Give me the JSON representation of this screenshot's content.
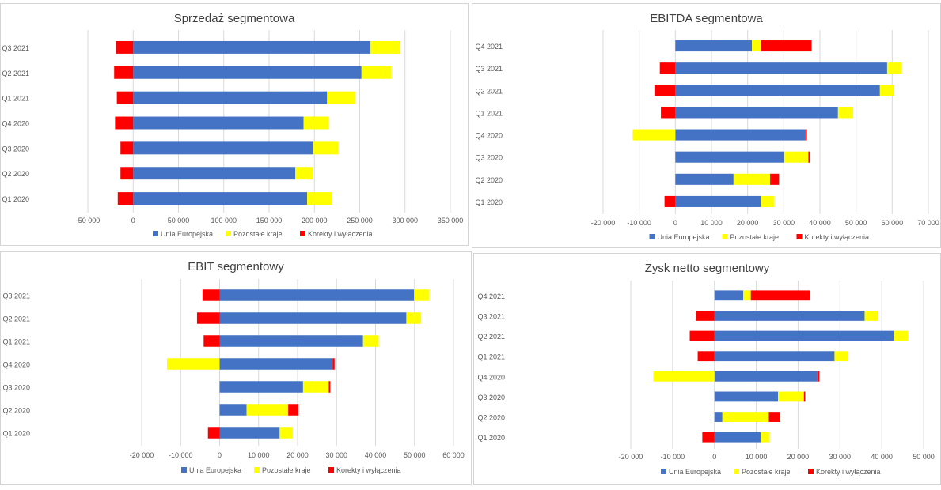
{
  "colors": {
    "eu": "#4472C4",
    "other": "#FFFF00",
    "corr": "#FF0000",
    "grid": "#d9d9d9",
    "text": "#595959",
    "title": "#404040"
  },
  "chart_data": [
    {
      "type": "bar",
      "orientation": "horizontal",
      "stacked": true,
      "title": "Sprzedaż segmentowa",
      "categories": [
        "Q1 2020",
        "Q2 2020",
        "Q3 2020",
        "Q4 2020",
        "Q1 2021",
        "Q2 2021",
        "Q3 2021"
      ],
      "series": [
        {
          "name": "Unia Europejska",
          "color": "#4472C4",
          "values": [
            192000,
            179000,
            199000,
            188000,
            214000,
            252000,
            262000
          ]
        },
        {
          "name": "Pozostałe kraje",
          "color": "#FFFF00",
          "values": [
            27000,
            19000,
            27000,
            28000,
            31000,
            33000,
            33000
          ]
        },
        {
          "name": "Korekty i wyłączenia",
          "color": "#FF0000",
          "values": [
            -17000,
            -14000,
            -14000,
            -20000,
            -18000,
            -21000,
            -19000
          ]
        }
      ],
      "xlim": [
        -50000,
        350000
      ],
      "xticks": [
        -50000,
        0,
        50000,
        100000,
        150000,
        200000,
        250000,
        300000,
        350000
      ],
      "xtick_labels": [
        "-50 000",
        "0",
        "50 000",
        "100 000",
        "150 000",
        "200 000",
        "250 000",
        "300 000",
        "350 000"
      ],
      "grid": true,
      "legend_position": "bottom"
    },
    {
      "type": "bar",
      "orientation": "horizontal",
      "stacked": true,
      "title": "EBITDA segmentowa",
      "categories": [
        "Q1 2020",
        "Q2 2020",
        "Q3 2020",
        "Q4 2020",
        "Q1 2021",
        "Q2 2021",
        "Q3 2021",
        "Q4 2021"
      ],
      "series": [
        {
          "name": "Unia Europejska",
          "color": "#4472C4",
          "values": [
            23700,
            16100,
            30100,
            36000,
            45000,
            56600,
            58600,
            21200
          ]
        },
        {
          "name": "Pozostałe kraje",
          "color": "#FFFF00",
          "values": [
            3700,
            10100,
            6700,
            -11800,
            4200,
            3900,
            4000,
            2600
          ]
        },
        {
          "name": "Korekty i wyłączenia",
          "color": "#FF0000",
          "values": [
            -3000,
            2500,
            400,
            400,
            -4000,
            -5800,
            -4300,
            13900
          ]
        }
      ],
      "xlim": [
        -20000,
        70000
      ],
      "xticks": [
        -20000,
        -10000,
        0,
        10000,
        20000,
        30000,
        40000,
        50000,
        60000,
        70000
      ],
      "xtick_labels": [
        "-20 000",
        "-10 000",
        "0",
        "10 000",
        "20 000",
        "30 000",
        "40 000",
        "50 000",
        "60 000",
        "70 000"
      ],
      "grid": true,
      "legend_position": "bottom"
    },
    {
      "type": "bar",
      "orientation": "horizontal",
      "stacked": true,
      "title": "EBIT segmentowy",
      "categories": [
        "Q1 2020",
        "Q2 2020",
        "Q3 2020",
        "Q4 2020",
        "Q1 2021",
        "Q2 2021",
        "Q3 2021"
      ],
      "series": [
        {
          "name": "Unia Europejska",
          "color": "#4472C4",
          "values": [
            15400,
            6900,
            21400,
            29000,
            36800,
            47900,
            49900
          ]
        },
        {
          "name": "Pozostałe kraje",
          "color": "#FFFF00",
          "values": [
            3400,
            10700,
            6600,
            -13500,
            4000,
            3800,
            3900
          ]
        },
        {
          "name": "Korekty i wyłączenia",
          "color": "#FF0000",
          "values": [
            -3000,
            2600,
            400,
            500,
            -4100,
            -5800,
            -4400
          ]
        }
      ],
      "xlim": [
        -20000,
        60000
      ],
      "xticks": [
        -20000,
        -10000,
        0,
        10000,
        20000,
        30000,
        40000,
        50000,
        60000
      ],
      "xtick_labels": [
        "-20 000",
        "-10 000",
        "0",
        "10 000",
        "20 000",
        "30 000",
        "40 000",
        "50 000",
        "60 000"
      ],
      "grid": true,
      "legend_position": "bottom"
    },
    {
      "type": "bar",
      "orientation": "horizontal",
      "stacked": true,
      "title": "Zysk netto segmentowy",
      "categories": [
        "Q1 2020",
        "Q2 2020",
        "Q3 2020",
        "Q4 2020",
        "Q1 2021",
        "Q2 2021",
        "Q3 2021",
        "Q4 2021"
      ],
      "series": [
        {
          "name": "Unia Europejska",
          "color": "#4472C4",
          "values": [
            11100,
            1900,
            15200,
            24600,
            28700,
            42900,
            35900,
            6900
          ]
        },
        {
          "name": "Pozostałe kraje",
          "color": "#FFFF00",
          "values": [
            2100,
            11100,
            6200,
            -14600,
            3300,
            3300,
            3300,
            1800
          ]
        },
        {
          "name": "Korekty i wyłączenia",
          "color": "#FF0000",
          "values": [
            -2900,
            2700,
            300,
            500,
            -4000,
            -5900,
            -4500,
            14200
          ]
        }
      ],
      "xlim": [
        -20000,
        50000
      ],
      "xticks": [
        -20000,
        -10000,
        0,
        10000,
        20000,
        30000,
        40000,
        50000
      ],
      "xtick_labels": [
        "-20 000",
        "-10 000",
        "0",
        "10 000",
        "20 000",
        "30 000",
        "40 000",
        "50 000"
      ],
      "grid": true,
      "legend_position": "bottom"
    }
  ]
}
